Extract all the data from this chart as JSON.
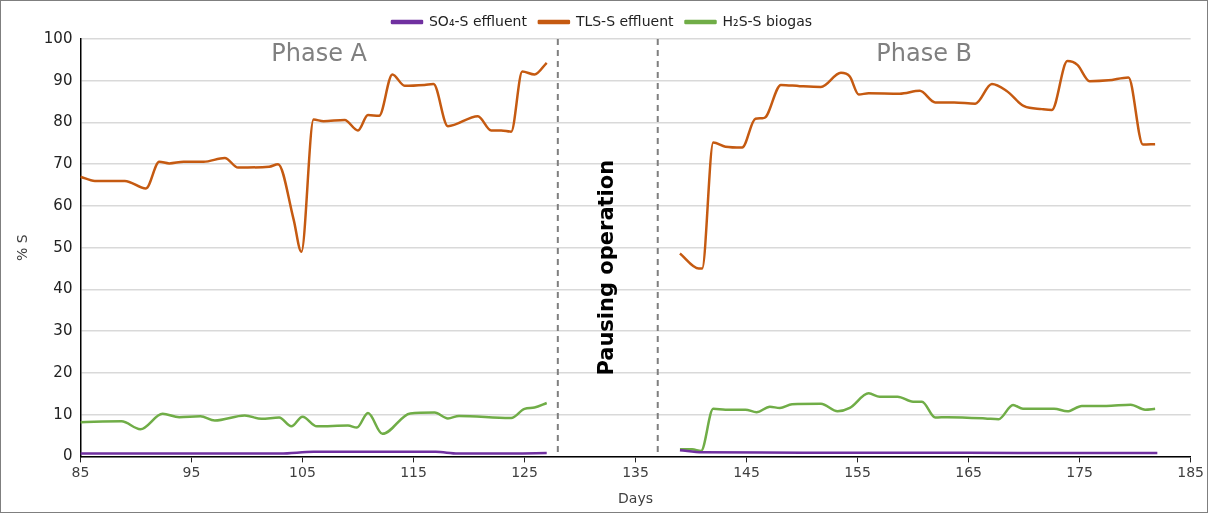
{
  "chart_data": {
    "type": "line",
    "xlabel": "Days",
    "ylabel": "% S",
    "xlim": [
      85,
      185
    ],
    "xticks": [
      85,
      95,
      105,
      115,
      125,
      135,
      145,
      155,
      165,
      175,
      185
    ],
    "ylim": [
      0,
      100
    ],
    "yticks": [
      0,
      10,
      20,
      30,
      40,
      50,
      60,
      70,
      80,
      90,
      100
    ],
    "grid": "y",
    "legend": "top",
    "marker": "none",
    "line_style": "solid",
    "series": [
      {
        "name": "SO₄-S effluent",
        "color": "#7030a0",
        "x": [
          85,
          95,
          103,
          106,
          112,
          117,
          119,
          124,
          127,
          133,
          139,
          141,
          150,
          160,
          170,
          182
        ],
        "values": [
          0.7,
          0.7,
          0.7,
          1.1,
          1.1,
          1.1,
          0.7,
          0.7,
          0.8,
          null,
          1.5,
          1.0,
          0.9,
          0.9,
          0.8,
          0.8
        ]
      },
      {
        "name": "TLS-S effluent",
        "color": "#c55a11",
        "x": [
          85,
          86.3,
          89,
          90.9,
          92.1,
          93,
          94.3,
          96.1,
          98,
          99.2,
          102,
          102.8,
          104.2,
          104.9,
          106,
          106.9,
          108.8,
          110,
          110.9,
          111.9,
          113.1,
          114.2,
          116,
          116.8,
          118.1,
          120.8,
          122,
          122.9,
          123.8,
          124.8,
          125.9,
          127,
          133,
          139,
          140.7,
          141,
          142,
          143.1,
          144.6,
          145.8,
          146.6,
          148.1,
          149.8,
          151.7,
          153.5,
          154.3,
          155.1,
          156,
          158.8,
          160.6,
          162,
          163.7,
          165.6,
          167.1,
          168.4,
          170,
          171.6,
          172.5,
          173.9,
          174.8,
          175.9,
          177.6,
          179.4,
          180.7,
          181.8
        ],
        "values": [
          67,
          66,
          66,
          64.2,
          70.6,
          70.2,
          70.6,
          70.6,
          71.5,
          69.2,
          69.4,
          70,
          56.8,
          49,
          80.7,
          80.3,
          80.6,
          78.1,
          81.8,
          81.6,
          91.5,
          88.8,
          89,
          89.2,
          79.1,
          81.5,
          78.1,
          78.1,
          77.8,
          92.2,
          91.5,
          94.3,
          null,
          48.6,
          45,
          45,
          75.2,
          74.2,
          74,
          80.9,
          81.1,
          89,
          88.7,
          88.5,
          91.9,
          91,
          86.7,
          87,
          86.9,
          87.6,
          84.8,
          84.8,
          84.5,
          89.2,
          87.6,
          83.9,
          83.2,
          83,
          94.7,
          93.8,
          89.9,
          90.1,
          90.8,
          74.7,
          74.8
        ]
      },
      {
        "name": "H₂S-S biogas",
        "color": "#70ad47",
        "x": [
          85,
          88.7,
          90.4,
          92.4,
          93.9,
          95.8,
          97.1,
          99.8,
          101.3,
          102.9,
          104,
          105,
          106.3,
          109.1,
          109.9,
          110.9,
          112.2,
          114.7,
          116.9,
          118.1,
          119.1,
          123.8,
          125,
          125.9,
          127,
          133,
          139,
          140.1,
          140.9,
          142,
          143.1,
          144.9,
          145.9,
          147.1,
          148,
          149.1,
          151.7,
          153.2,
          154.3,
          156,
          157,
          158.6,
          160,
          160.8,
          162,
          163.1,
          166.5,
          167.7,
          169,
          169.9,
          172.7,
          173.9,
          175.2,
          177.4,
          179.6,
          180.9,
          181.8
        ],
        "values": [
          8.2,
          8.4,
          6.5,
          10.2,
          9.4,
          9.6,
          8.6,
          9.8,
          9,
          9.3,
          7.2,
          9.5,
          7.2,
          7.4,
          6.9,
          10.4,
          5.4,
          10.3,
          10.5,
          9.1,
          9.7,
          9.2,
          11.4,
          11.7,
          12.8,
          null,
          1.7,
          1.7,
          1.3,
          11.4,
          11.2,
          11.2,
          10.6,
          11.9,
          11.6,
          12.5,
          12.6,
          10.8,
          11.6,
          15.1,
          14.3,
          14.3,
          13.1,
          13.1,
          9.3,
          9.4,
          9.1,
          8.9,
          12.3,
          11.4,
          11.4,
          10.8,
          12.1,
          12.1,
          12.4,
          11.2,
          11.4
        ]
      }
    ],
    "ref_lines": [
      {
        "axis": "x",
        "value": 128,
        "color": "#7f7f7f",
        "line_style": "dashed"
      },
      {
        "axis": "x",
        "value": 137,
        "color": "#7f7f7f",
        "line_style": "dashed"
      }
    ],
    "annotations": [
      "Phase A",
      "Phase B",
      "Pausing operation"
    ]
  }
}
